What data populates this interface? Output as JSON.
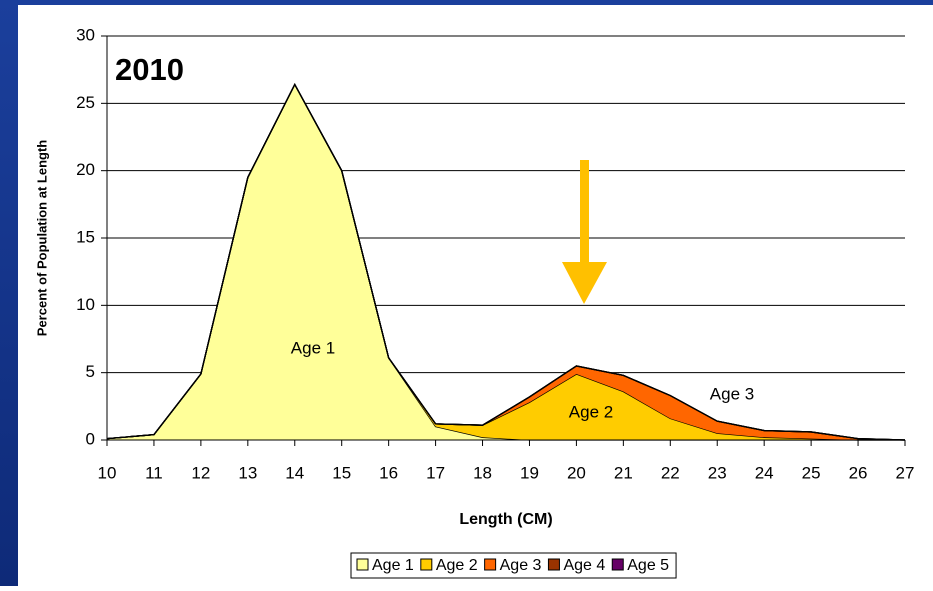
{
  "chart_data": {
    "type": "stacked_area",
    "title": "2010",
    "x_label": "Length (CM)",
    "y_label": "Percent of Population at Length",
    "x": [
      10,
      11,
      12,
      13,
      14,
      15,
      16,
      17,
      18,
      19,
      20,
      21,
      22,
      23,
      24,
      25,
      26,
      27
    ],
    "xlim": [
      10,
      27
    ],
    "xticks": [
      10,
      11,
      12,
      13,
      14,
      15,
      16,
      17,
      18,
      19,
      20,
      21,
      22,
      23,
      24,
      25,
      26,
      27
    ],
    "ylim": [
      0,
      30
    ],
    "yticks": [
      0,
      5,
      10,
      15,
      20,
      25,
      30
    ],
    "grid": true,
    "legend": "bottom",
    "annotations": [
      "Age 1",
      "Age 2",
      "Age 3"
    ],
    "series": [
      {
        "name": "Age 1",
        "color": "#ffff99",
        "values": [
          0.1,
          0.4,
          4.9,
          19.5,
          26.4,
          20,
          6.1,
          1.0,
          0.2,
          0,
          0,
          0,
          0,
          0,
          0,
          0,
          0,
          0
        ]
      },
      {
        "name": "Age 2",
        "color": "#ffcc00",
        "values": [
          0,
          0,
          0,
          0,
          0,
          0,
          0,
          0.2,
          0.9,
          2.8,
          4.9,
          3.6,
          1.6,
          0.5,
          0.2,
          0.1,
          0,
          0
        ]
      },
      {
        "name": "Age 3",
        "color": "#ff6600",
        "values": [
          0,
          0,
          0,
          0,
          0,
          0,
          0,
          0,
          0,
          0.4,
          0.6,
          1.2,
          1.7,
          0.9,
          0.5,
          0.5,
          0.1,
          0
        ]
      },
      {
        "name": "Age 4",
        "color": "#993300",
        "values": [
          0,
          0,
          0,
          0,
          0,
          0,
          0,
          0,
          0,
          0,
          0,
          0,
          0,
          0,
          0,
          0,
          0,
          0
        ]
      },
      {
        "name": "Age 5",
        "color": "#660066",
        "values": [
          0,
          0,
          0,
          0,
          0,
          0,
          0,
          0,
          0,
          0,
          0,
          0,
          0,
          0,
          0,
          0,
          0,
          0
        ]
      }
    ]
  }
}
